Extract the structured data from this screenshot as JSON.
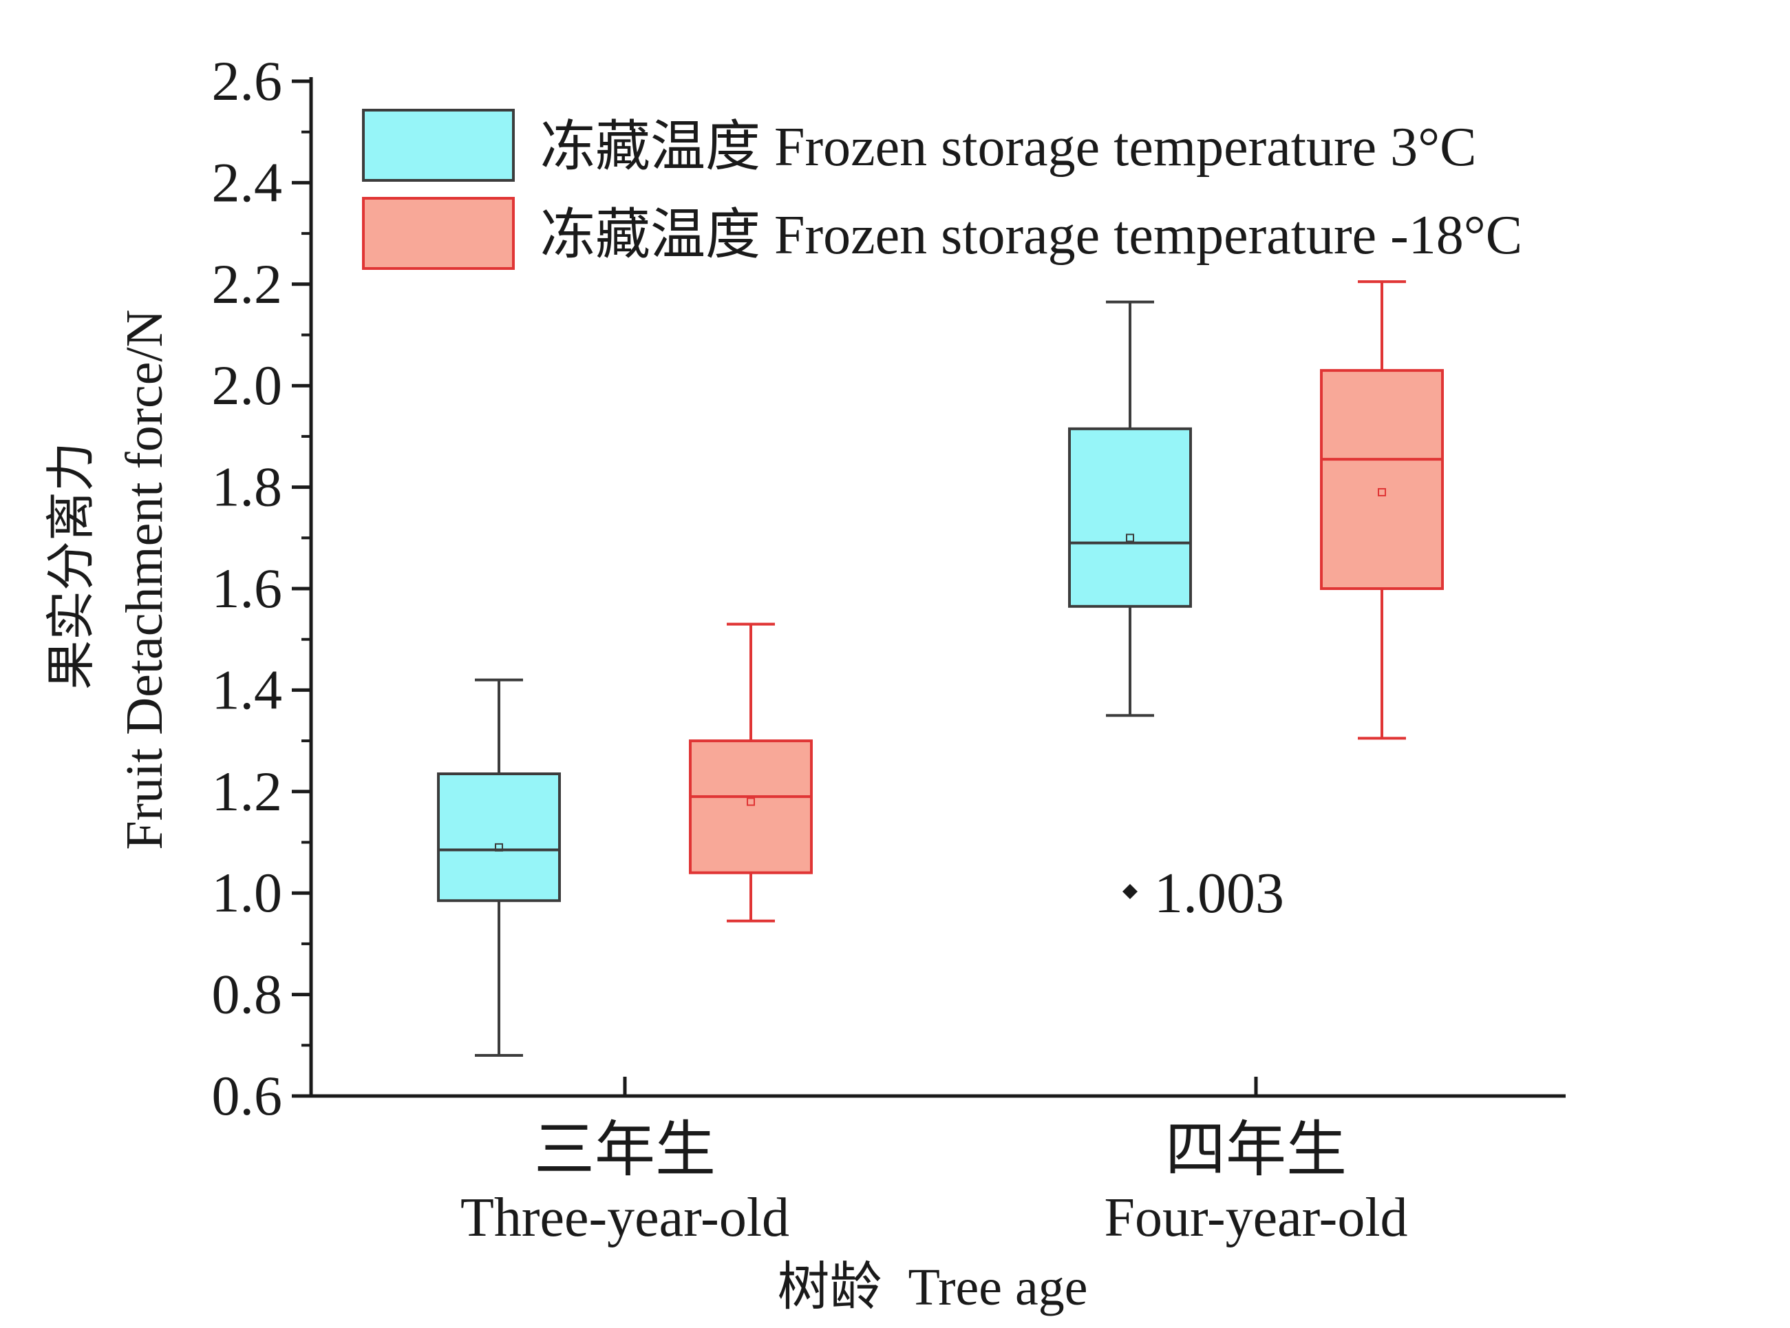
{
  "chart_data": {
    "type": "box",
    "title": "",
    "xlabel": "树龄  Tree age",
    "ylabel_cn": "果实分离力",
    "ylabel_en": "Fruit Detachment force/N",
    "ylim": [
      0.6,
      2.6
    ],
    "y_ticks": [
      "0.6",
      "0.8",
      "1.0",
      "1.2",
      "1.4",
      "1.6",
      "1.8",
      "2.0",
      "2.2",
      "2.4",
      "2.6"
    ],
    "categories": [
      {
        "cn": "三年生",
        "en": "Three-year-old"
      },
      {
        "cn": "四年生",
        "en": "Four-year-old"
      }
    ],
    "legend_position": "top",
    "series": [
      {
        "name": "冻藏温度 Frozen storage temperature 3°C",
        "fill": "#96f5f8",
        "stroke": "#3c3c3c",
        "boxes": [
          {
            "whisker_low": 0.68,
            "q1": 0.985,
            "median": 1.085,
            "mean": 1.09,
            "q3": 1.235,
            "whisker_high": 1.42
          },
          {
            "whisker_low": 1.35,
            "q1": 1.565,
            "median": 1.69,
            "mean": 1.7,
            "q3": 1.915,
            "whisker_high": 2.165
          }
        ]
      },
      {
        "name": "冻藏温度 Frozen storage temperature -18°C",
        "fill": "#f8a898",
        "stroke": "#e03535",
        "boxes": [
          {
            "whisker_low": 0.945,
            "q1": 1.04,
            "median": 1.19,
            "mean": 1.18,
            "q3": 1.3,
            "whisker_high": 1.53
          },
          {
            "whisker_low": 1.305,
            "q1": 1.6,
            "median": 1.855,
            "mean": 1.79,
            "q3": 2.03,
            "whisker_high": 2.205
          }
        ]
      }
    ],
    "outliers": [
      {
        "series": 0,
        "category": 1,
        "value": 1.003,
        "label": "1.003"
      }
    ]
  }
}
